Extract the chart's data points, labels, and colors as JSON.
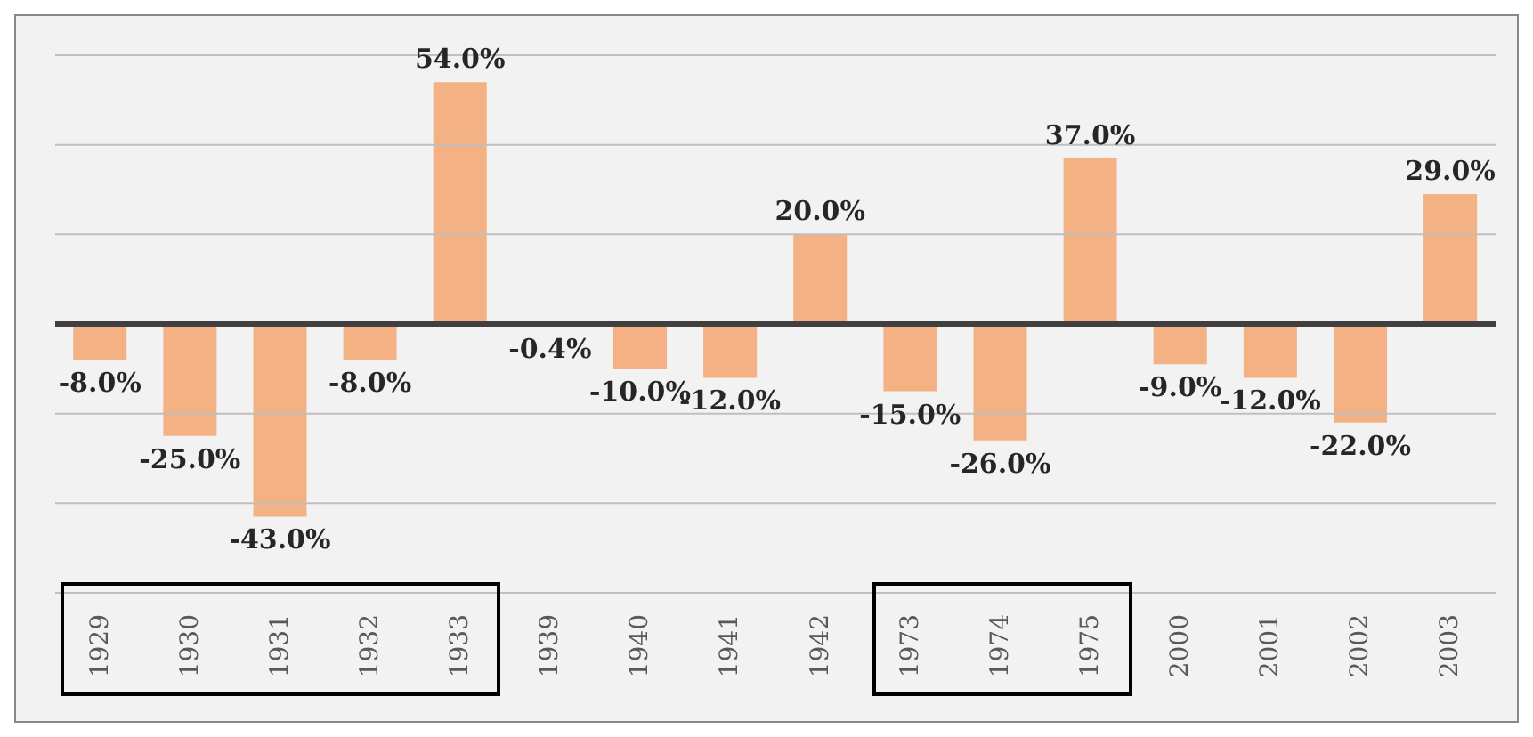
{
  "chart_data": {
    "type": "bar",
    "categories": [
      "1929",
      "1930",
      "1931",
      "1932",
      "1933",
      "1939",
      "1940",
      "1941",
      "1942",
      "1973",
      "1974",
      "1975",
      "2000",
      "2001",
      "2002",
      "2003"
    ],
    "values": [
      -8,
      -25,
      -43,
      -8,
      54,
      -0.4,
      -10,
      -12,
      20,
      -15,
      -26,
      37,
      -9,
      -12,
      -22,
      29
    ],
    "value_labels": [
      "-8.0%",
      "-25.0%",
      "-43.0%",
      "-8.0%",
      "54.0%",
      "-0.4%",
      "-10.0%",
      "-12.0%",
      "20.0%",
      "-15.0%",
      "-26.0%",
      "37.0%",
      "-9.0%",
      "-12.0%",
      "-22.0%",
      "29.0%"
    ],
    "color": "#f4b183",
    "ylim": [
      -60,
      60
    ],
    "yticks": [
      {
        "value": -60,
        "label": null
      },
      {
        "value": -40,
        "label": null
      },
      {
        "value": -20,
        "label": null
      },
      {
        "value": 0,
        "label": null
      },
      {
        "value": 20,
        "label": null
      },
      {
        "value": 40,
        "label": null
      },
      {
        "value": 60,
        "label": null
      }
    ],
    "grid": "y",
    "tick_labels": "x",
    "ref_lines": [
      {
        "axis": "y",
        "value": 0,
        "color": "#404040"
      }
    ]
  }
}
